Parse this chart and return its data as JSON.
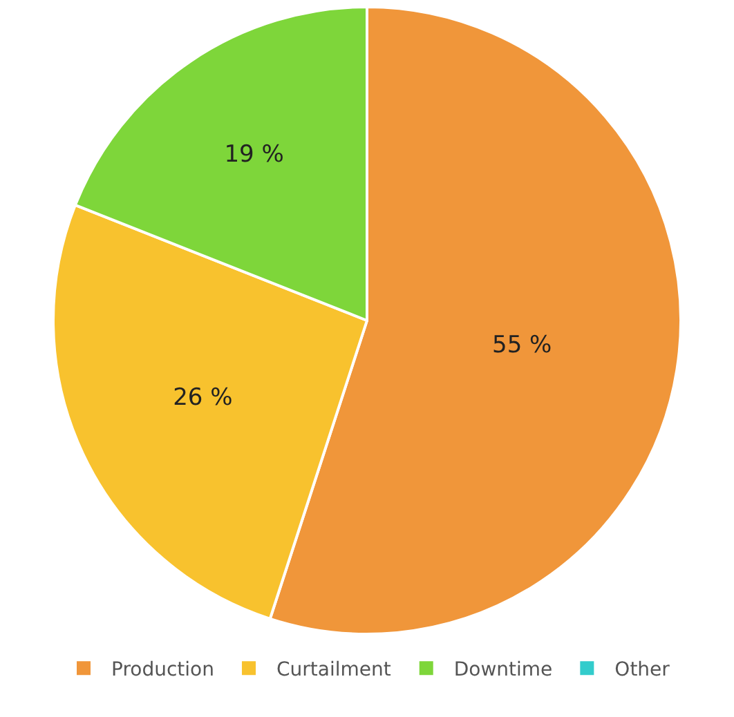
{
  "chart_data": {
    "type": "pie",
    "categories": [
      "Production",
      "Curtailment",
      "Downtime",
      "Other"
    ],
    "values": [
      55,
      26,
      19,
      0
    ],
    "colors": [
      "#f0963a",
      "#f8c22e",
      "#7ed63a",
      "#33cccc"
    ],
    "value_labels": [
      "55 %",
      "26 %",
      "19 %",
      null
    ],
    "legend": "bottom"
  }
}
